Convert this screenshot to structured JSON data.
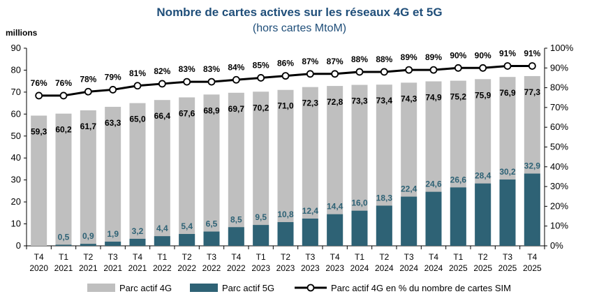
{
  "chart_data": {
    "type": "bar",
    "title": "Nombre de cartes actives sur les réseaux 4G et 5G",
    "subtitle": "(hors cartes MtoM)",
    "ylabel": "millions",
    "ylim": [
      0,
      90
    ],
    "y_ticks": [
      "0",
      "10",
      "20",
      "30",
      "40",
      "50",
      "60",
      "70",
      "80",
      "90"
    ],
    "y2lim": [
      0,
      100
    ],
    "y2_ticks": [
      "0%",
      "10%",
      "20%",
      "30%",
      "40%",
      "50%",
      "60%",
      "70%",
      "80%",
      "90%",
      "100%"
    ],
    "categories": [
      [
        "T4",
        "2020"
      ],
      [
        "T1",
        "2021"
      ],
      [
        "T2",
        "2021"
      ],
      [
        "T3",
        "2021"
      ],
      [
        "T4",
        "2021"
      ],
      [
        "T1",
        "2022"
      ],
      [
        "T2",
        "2022"
      ],
      [
        "T3",
        "2022"
      ],
      [
        "T4",
        "2022"
      ],
      [
        "T1",
        "2023"
      ],
      [
        "T2",
        "2023"
      ],
      [
        "T3",
        "2023"
      ],
      [
        "T4",
        "2023"
      ],
      [
        "T1",
        "2024"
      ],
      [
        "T2",
        "2024"
      ],
      [
        "T3",
        "2024"
      ],
      [
        "T4",
        "2024"
      ],
      [
        "T1",
        "2025"
      ],
      [
        "T2",
        "2025"
      ],
      [
        "T3",
        "2025"
      ],
      [
        "T4",
        "2025"
      ]
    ],
    "series": [
      {
        "name": "Parc actif 4G",
        "type": "bar",
        "color": "#bfbfbf",
        "values": [
          59.3,
          60.2,
          61.7,
          63.3,
          65.0,
          66.4,
          67.6,
          68.9,
          69.7,
          70.2,
          71.0,
          72.3,
          72.8,
          73.3,
          73.4,
          74.3,
          74.9,
          75.2,
          75.9,
          76.9,
          77.3
        ],
        "labels": [
          "59,3",
          "60,2",
          "61,7",
          "63,3",
          "65,0",
          "66,4",
          "67,6",
          "68,9",
          "69,7",
          "70,2",
          "71,0",
          "72,3",
          "72,8",
          "73,3",
          "73,4",
          "74,3",
          "74,9",
          "75,2",
          "75,9",
          "76,9",
          "77,3"
        ]
      },
      {
        "name": "Parc actif 5G",
        "type": "bar",
        "color": "#2e6275",
        "values": [
          null,
          0.5,
          0.9,
          1.9,
          3.2,
          4.4,
          5.4,
          6.5,
          8.5,
          9.5,
          10.8,
          12.4,
          14.4,
          16.0,
          18.3,
          22.4,
          24.6,
          26.6,
          28.4,
          30.2,
          32.9
        ],
        "labels": [
          "",
          "0,5",
          "0,9",
          "1,9",
          "3,2",
          "4,4",
          "5,4",
          "6,5",
          "8,5",
          "9,5",
          "10,8",
          "12,4",
          "14,4",
          "16,0",
          "18,3",
          "22,4",
          "24,6",
          "26,6",
          "28,4",
          "30,2",
          "32,9"
        ]
      },
      {
        "name": "Parc actif 4G en % du nombre de cartes SIM",
        "type": "line",
        "axis": "right",
        "color": "#000000",
        "values": [
          76,
          76,
          78,
          79,
          81,
          82,
          83,
          83,
          84,
          85,
          86,
          87,
          87,
          88,
          88,
          89,
          89,
          90,
          90,
          91,
          91
        ],
        "labels": [
          "76%",
          "76%",
          "78%",
          "79%",
          "81%",
          "82%",
          "83%",
          "83%",
          "84%",
          "85%",
          "86%",
          "87%",
          "87%",
          "88%",
          "88%",
          "89%",
          "89%",
          "90%",
          "90%",
          "91%",
          "91%"
        ]
      }
    ],
    "legend": "bottom",
    "grid": false
  }
}
